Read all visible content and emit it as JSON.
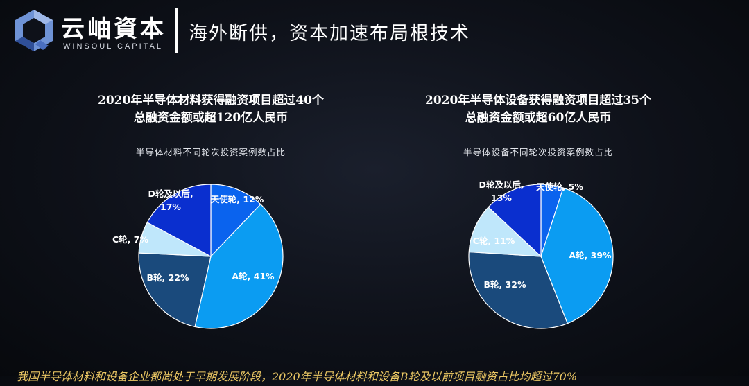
{
  "header": {
    "logo_cn": "云岫資本",
    "logo_en": "WINSOUL CAPITAL",
    "title": "海外断供，资本加速布局根技术",
    "colors": {
      "logo_light": "#6f93d6",
      "logo_dark": "#2f4f98"
    }
  },
  "footer": {
    "text": "我国半导体材料和设备企业都尚处于早期发展阶段，2020年半导体材料和设备B轮及以前项目融资占比均超过70%"
  },
  "chart_data": [
    {
      "type": "pie",
      "heading_line1": "2020年半导体材料获得融资项目超过40个",
      "heading_line2": "总融资金额或超120亿人民币",
      "title": "半导体材料不同轮次投资案例数占比",
      "units": "%",
      "labels": [
        "天使轮",
        "A轮",
        "B轮",
        "C轮",
        "D轮及以后"
      ],
      "values": [
        12,
        41,
        22,
        7,
        17
      ],
      "data_labels": [
        "天使轮, 12%",
        "A轮, 41%",
        "B轮, 22%",
        "C轮, 7%",
        "D轮及以后,|17%"
      ],
      "colors": [
        "#0a63ee",
        "#0b9cf2",
        "#1a4a7c",
        "#bfe7fb",
        "#0a2fcf"
      ],
      "start_angle_deg": 0
    },
    {
      "type": "pie",
      "heading_line1": "2020年半导体设备获得融资项目超过35个",
      "heading_line2": "总融资金额或超60亿人民币",
      "title": "半导体设备不同轮次投资案例数占比",
      "units": "%",
      "labels": [
        "天使轮",
        "A轮",
        "B轮",
        "C轮",
        "D轮及以后"
      ],
      "values": [
        5,
        39,
        32,
        11,
        13
      ],
      "data_labels": [
        "天使轮, 5%",
        "A轮, 39%",
        "B轮, 32%",
        "C轮, 11%",
        "D轮及以后,|13%"
      ],
      "colors": [
        "#0a63ee",
        "#0b9cf2",
        "#1a4a7c",
        "#bfe7fb",
        "#0a2fcf"
      ],
      "start_angle_deg": 0
    }
  ]
}
